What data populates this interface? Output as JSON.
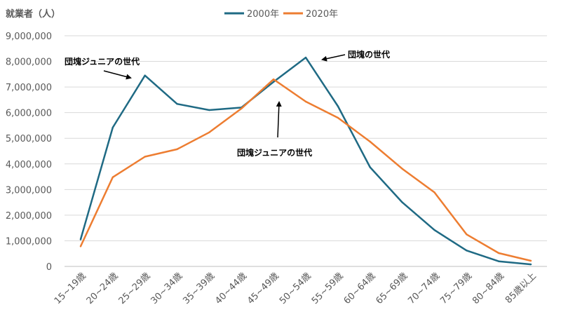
{
  "chart_data": {
    "type": "line",
    "ylabel": "就業者（人）",
    "ylim": [
      0,
      9000000
    ],
    "yticks": [
      0,
      1000000,
      2000000,
      3000000,
      4000000,
      5000000,
      6000000,
      7000000,
      8000000,
      9000000
    ],
    "ytick_labels": [
      "0",
      "1,000,000",
      "2,000,000",
      "3,000,000",
      "4,000,000",
      "5,000,000",
      "6,000,000",
      "7,000,000",
      "8,000,000",
      "9,000,000"
    ],
    "categories": [
      "15~19歳",
      "20~24歳",
      "25~29歳",
      "30~34歳",
      "35~39歳",
      "40~44歳",
      "45~49歳",
      "50~54歳",
      "55~59歳",
      "60~64歳",
      "65~69歳",
      "70~74歳",
      "75~79歳",
      "80~84歳",
      "85歳以上"
    ],
    "legend_position": "top",
    "grid": true,
    "series": [
      {
        "name": "2000年",
        "color": "#1F6A84",
        "values": [
          1050000,
          5420000,
          7450000,
          6340000,
          6100000,
          6200000,
          7200000,
          8150000,
          6250000,
          3870000,
          2500000,
          1420000,
          620000,
          200000,
          80000
        ]
      },
      {
        "name": "2020年",
        "color": "#ED7D31",
        "values": [
          780000,
          3480000,
          4280000,
          4570000,
          5230000,
          6160000,
          7300000,
          6430000,
          5800000,
          4870000,
          3810000,
          2890000,
          1250000,
          520000,
          220000
        ]
      }
    ],
    "annotations": [
      {
        "text": "団塊ジュニアの世代",
        "points_to": "25~29歳",
        "series": "2000年"
      },
      {
        "text": "団塊の世代",
        "points_to": "50~54歳",
        "series": "2000年"
      },
      {
        "text": "団塊ジュニアの世代",
        "points_to": "45~49歳",
        "series": "2020年"
      }
    ]
  }
}
